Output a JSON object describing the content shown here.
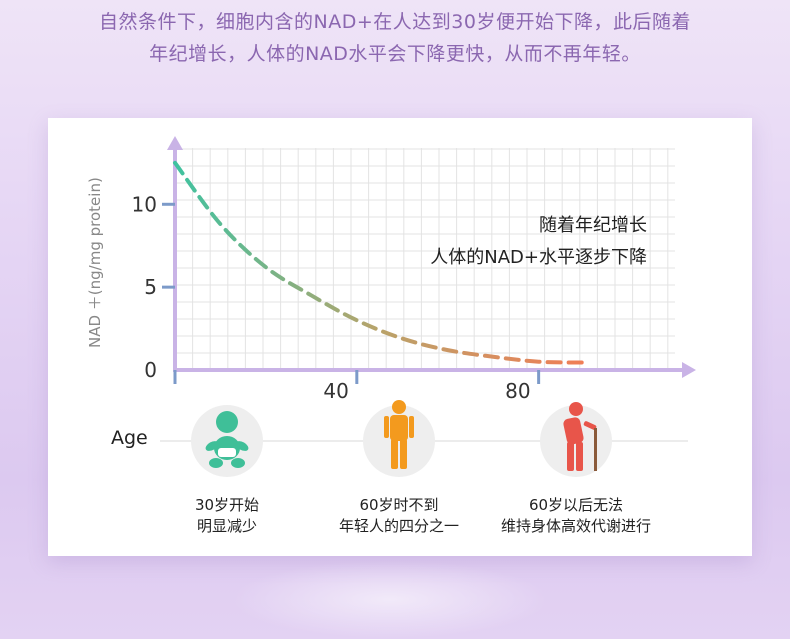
{
  "intro": {
    "line1": "自然条件下，细胞内含的NAD+在人达到30岁便开始下降，此后随着",
    "line2": "年纪增长，人体的NAD水平会下降更快，从而不再年轻。"
  },
  "chart_data": {
    "type": "line",
    "ylabel": "NAD ＋(ng/mg protein)",
    "xlabel": "",
    "x_ticks": [
      "40",
      "80"
    ],
    "y_ticks": [
      "0",
      "5",
      "10"
    ],
    "xlim": [
      0,
      110
    ],
    "ylim": [
      0,
      14
    ],
    "series": [
      {
        "x": [
          0,
          10,
          20,
          30,
          40,
          50,
          60,
          70,
          80,
          90
        ],
        "y": [
          12.5,
          8.8,
          6.2,
          4.5,
          3.0,
          1.9,
          1.2,
          0.8,
          0.5,
          0.45
        ]
      }
    ],
    "grid": true,
    "annotation": {
      "line1": "随着年纪增长",
      "line2": "人体的NAD+水平逐步下降"
    }
  },
  "age_label": "Age",
  "stages": [
    {
      "icon": "baby-icon",
      "line1": "30岁开始",
      "line2": "明显减少",
      "color": "#3fbf98"
    },
    {
      "icon": "adult-icon",
      "line1": "60岁时不到",
      "line2": "年轻人的四分之一",
      "color": "#f39a1e"
    },
    {
      "icon": "elderly-icon",
      "line1": "60岁以后无法",
      "line2": "维持身体高效代谢进行",
      "color": "#e8554a"
    }
  ],
  "colors": {
    "curve_start": "#3fc2a0",
    "curve_mid": "#b9a36a",
    "curve_end": "#f07d56",
    "axis": "#c9b3e6",
    "tick_mark": "#7c9ac9",
    "intro_text": "#8b67b0"
  }
}
